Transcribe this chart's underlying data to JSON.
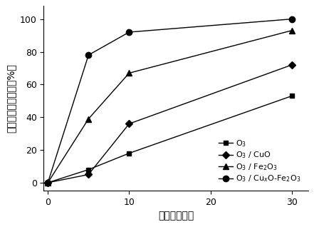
{
  "x": [
    0,
    5,
    10,
    30
  ],
  "series": [
    {
      "label": "O$_3$",
      "y": [
        0,
        8,
        18,
        53
      ],
      "marker": "s",
      "markersize": 5,
      "color": "#000000",
      "linestyle": "-"
    },
    {
      "label": "O$_3$ / CuO",
      "y": [
        0,
        5,
        36,
        72
      ],
      "marker": "D",
      "markersize": 5,
      "color": "#000000",
      "linestyle": "-"
    },
    {
      "label": "O$_3$ / Fe$_2$O$_3$",
      "y": [
        0,
        39,
        67,
        93
      ],
      "marker": "^",
      "markersize": 6,
      "color": "#000000",
      "linestyle": "-"
    },
    {
      "label": "O$_3$ / Cu$_x$O-Fe$_2$O$_3$",
      "y": [
        0,
        78,
        92,
        100
      ],
      "marker": "o",
      "markersize": 6,
      "color": "#000000",
      "linestyle": "-"
    }
  ],
  "xlabel_cn": "时间（分钟）",
  "ylabel_cn": "邻苯二甲酸二甲酯（%）",
  "xlim": [
    -0.5,
    32
  ],
  "ylim": [
    -5,
    108
  ],
  "xticks": [
    0,
    10,
    20,
    30
  ],
  "yticks": [
    0,
    20,
    40,
    60,
    80,
    100
  ],
  "legend_loc": "lower right",
  "background_color": "#ffffff",
  "font_size": 10,
  "label_font_size": 10,
  "tick_fontsize": 9
}
